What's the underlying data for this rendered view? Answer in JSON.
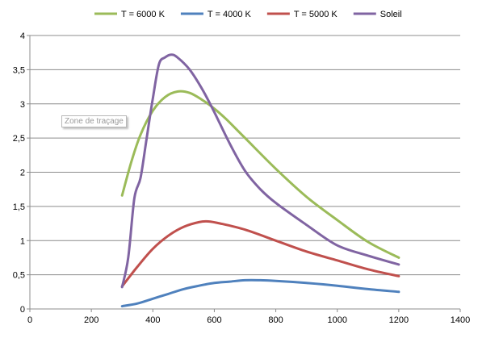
{
  "chart_data": {
    "type": "line",
    "title": "",
    "xlabel": "",
    "ylabel": "",
    "xlim": [
      0,
      1400
    ],
    "ylim": [
      0,
      4
    ],
    "x_ticks": [
      "0",
      "200",
      "400",
      "600",
      "800",
      "1000",
      "1200",
      "1400"
    ],
    "y_ticks": [
      "0",
      "0,5",
      "1",
      "1,5",
      "2",
      "2,5",
      "3",
      "3,5",
      "4"
    ],
    "grid": "horizontal",
    "legend_position": "top",
    "series": [
      {
        "name": "T = 6000 K",
        "color": "#9bbb59",
        "points": [
          [
            300,
            1.66
          ],
          [
            330,
            2.15
          ],
          [
            360,
            2.55
          ],
          [
            400,
            2.9
          ],
          [
            440,
            3.1
          ],
          [
            480,
            3.18
          ],
          [
            520,
            3.16
          ],
          [
            560,
            3.06
          ],
          [
            600,
            2.93
          ],
          [
            640,
            2.77
          ],
          [
            700,
            2.5
          ],
          [
            800,
            2.05
          ],
          [
            900,
            1.64
          ],
          [
            1000,
            1.3
          ],
          [
            1100,
            0.98
          ],
          [
            1200,
            0.75
          ]
        ]
      },
      {
        "name": "T = 4000 K",
        "color": "#4f81bd",
        "points": [
          [
            300,
            0.04
          ],
          [
            350,
            0.08
          ],
          [
            400,
            0.15
          ],
          [
            450,
            0.22
          ],
          [
            500,
            0.29
          ],
          [
            550,
            0.34
          ],
          [
            600,
            0.38
          ],
          [
            650,
            0.4
          ],
          [
            700,
            0.42
          ],
          [
            750,
            0.42
          ],
          [
            800,
            0.41
          ],
          [
            900,
            0.38
          ],
          [
            1000,
            0.34
          ],
          [
            1100,
            0.29
          ],
          [
            1200,
            0.25
          ]
        ]
      },
      {
        "name": "T = 5000 K",
        "color": "#c0504d",
        "points": [
          [
            300,
            0.33
          ],
          [
            350,
            0.62
          ],
          [
            400,
            0.88
          ],
          [
            450,
            1.07
          ],
          [
            500,
            1.2
          ],
          [
            550,
            1.27
          ],
          [
            580,
            1.28
          ],
          [
            620,
            1.25
          ],
          [
            700,
            1.16
          ],
          [
            800,
            1.0
          ],
          [
            900,
            0.84
          ],
          [
            1000,
            0.71
          ],
          [
            1100,
            0.58
          ],
          [
            1200,
            0.48
          ]
        ]
      },
      {
        "name": "Soleil",
        "color": "#8064a2",
        "points": [
          [
            300,
            0.32
          ],
          [
            320,
            0.75
          ],
          [
            340,
            1.62
          ],
          [
            360,
            1.92
          ],
          [
            380,
            2.5
          ],
          [
            400,
            3.08
          ],
          [
            420,
            3.58
          ],
          [
            440,
            3.68
          ],
          [
            460,
            3.72
          ],
          [
            480,
            3.68
          ],
          [
            520,
            3.5
          ],
          [
            560,
            3.22
          ],
          [
            600,
            2.88
          ],
          [
            650,
            2.42
          ],
          [
            700,
            2.02
          ],
          [
            750,
            1.75
          ],
          [
            800,
            1.55
          ],
          [
            900,
            1.23
          ],
          [
            1000,
            0.93
          ],
          [
            1100,
            0.78
          ],
          [
            1200,
            0.65
          ]
        ]
      }
    ]
  },
  "overlay": {
    "tooltip": "Zone de traçage"
  }
}
